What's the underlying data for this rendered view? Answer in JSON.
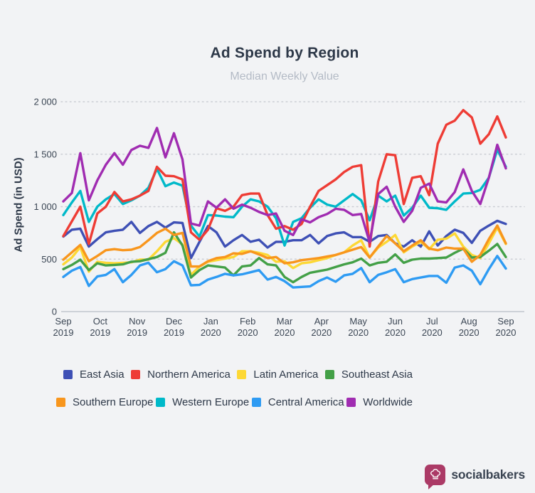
{
  "header": {
    "title": "Ad Spend by Region",
    "subtitle": "Median Weekly Value"
  },
  "branding": {
    "logo_text": "socialbakers",
    "logo_color": "#ab3a66",
    "logo_icon": "chef-hat-speech-bubble"
  },
  "chart_data": {
    "type": "line",
    "title": "Ad Spend by Region",
    "subtitle": "Median Weekly Value",
    "xlabel": "",
    "ylabel": "Ad Spend (in USD)",
    "ylim": [
      0,
      2000
    ],
    "grid": "horizontal-dotted",
    "legend_position": "bottom",
    "x_unit": "week",
    "points_per_series": 53,
    "y_ticks": [
      {
        "value": 0,
        "label": "0"
      },
      {
        "value": 500,
        "label": "500"
      },
      {
        "value": 1000,
        "label": "1 000"
      },
      {
        "value": 1500,
        "label": "1 500"
      },
      {
        "value": 2000,
        "label": "2 000"
      }
    ],
    "x_tick_labels": [
      {
        "month": "Sep",
        "year": "2019"
      },
      {
        "month": "Oct",
        "year": "2019"
      },
      {
        "month": "Nov",
        "year": "2019"
      },
      {
        "month": "Dec",
        "year": "2019"
      },
      {
        "month": "Jan",
        "year": "2020"
      },
      {
        "month": "Feb",
        "year": "2020"
      },
      {
        "month": "Mar",
        "year": "2020"
      },
      {
        "month": "Apr",
        "year": "2020"
      },
      {
        "month": "May",
        "year": "2020"
      },
      {
        "month": "Jun",
        "year": "2020"
      },
      {
        "month": "Jul",
        "year": "2020"
      },
      {
        "month": "Aug",
        "year": "2020"
      },
      {
        "month": "Sep",
        "year": "2020"
      }
    ],
    "series": [
      {
        "name": "East Asia",
        "color": "#3e50b5",
        "values": [
          715,
          780,
          790,
          620,
          690,
          755,
          770,
          780,
          855,
          750,
          815,
          855,
          800,
          850,
          845,
          510,
          665,
          815,
          755,
          620,
          680,
          730,
          665,
          685,
          610,
          665,
          665,
          680,
          680,
          730,
          650,
          720,
          745,
          755,
          710,
          710,
          665,
          720,
          730,
          650,
          620,
          680,
          620,
          765,
          630,
          720,
          780,
          750,
          655,
          770,
          820,
          865,
          835
        ]
      },
      {
        "name": "Northern America",
        "color": "#ee3c35",
        "values": [
          720,
          860,
          1000,
          645,
          935,
          1000,
          1140,
          1050,
          1070,
          1105,
          1150,
          1380,
          1295,
          1290,
          1260,
          755,
          685,
          780,
          985,
          960,
          1000,
          1110,
          1125,
          1125,
          920,
          790,
          815,
          780,
          835,
          1000,
          1150,
          1205,
          1260,
          1330,
          1380,
          1395,
          620,
          1240,
          1500,
          1490,
          1025,
          1275,
          1290,
          1110,
          1600,
          1780,
          1820,
          1920,
          1850,
          1600,
          1690,
          1860,
          1660
        ]
      },
      {
        "name": "Latin America",
        "color": "#fdd835",
        "values": [
          450,
          515,
          615,
          380,
          475,
          465,
          460,
          465,
          470,
          495,
          495,
          575,
          665,
          700,
          640,
          350,
          430,
          475,
          490,
          505,
          520,
          575,
          575,
          560,
          540,
          475,
          480,
          415,
          460,
          470,
          490,
          510,
          540,
          565,
          630,
          680,
          515,
          610,
          665,
          730,
          565,
          620,
          665,
          595,
          685,
          695,
          745,
          620,
          540,
          510,
          650,
          800,
          645
        ]
      },
      {
        "name": "Southeast Asia",
        "color": "#43a047",
        "values": [
          405,
          445,
          495,
          395,
          460,
          440,
          445,
          450,
          475,
          480,
          500,
          520,
          560,
          755,
          630,
          325,
          395,
          440,
          430,
          420,
          345,
          430,
          440,
          510,
          450,
          440,
          330,
          280,
          330,
          370,
          385,
          400,
          425,
          450,
          470,
          505,
          440,
          465,
          475,
          545,
          465,
          495,
          505,
          505,
          510,
          515,
          560,
          600,
          515,
          520,
          580,
          645,
          520
        ]
      },
      {
        "name": "Southern Europe",
        "color": "#f8961d",
        "values": [
          495,
          565,
          635,
          480,
          530,
          585,
          595,
          585,
          590,
          615,
          680,
          750,
          790,
          730,
          750,
          430,
          430,
          480,
          510,
          520,
          555,
          550,
          575,
          545,
          510,
          520,
          460,
          470,
          490,
          500,
          510,
          525,
          540,
          565,
          590,
          615,
          515,
          620,
          720,
          650,
          575,
          630,
          680,
          600,
          585,
          610,
          600,
          600,
          475,
          540,
          690,
          820,
          650
        ]
      },
      {
        "name": "Western Europe",
        "color": "#00b9c9",
        "values": [
          920,
          1040,
          1150,
          855,
          1000,
          1070,
          1120,
          1025,
          1060,
          1105,
          1180,
          1360,
          1195,
          1230,
          1200,
          820,
          715,
          920,
          915,
          905,
          900,
          1000,
          1070,
          1050,
          1000,
          890,
          630,
          855,
          890,
          990,
          1070,
          1020,
          1000,
          1060,
          1120,
          1060,
          870,
          1105,
          1050,
          1105,
          915,
          990,
          1105,
          990,
          985,
          970,
          1050,
          1125,
          1130,
          1160,
          1275,
          1545,
          1380
        ]
      },
      {
        "name": "Central America",
        "color": "#2e9bf3",
        "values": [
          330,
          390,
          425,
          245,
          335,
          350,
          405,
          280,
          350,
          440,
          465,
          375,
          405,
          480,
          440,
          250,
          255,
          305,
          330,
          360,
          345,
          355,
          375,
          395,
          305,
          330,
          290,
          230,
          235,
          240,
          290,
          325,
          285,
          345,
          360,
          415,
          280,
          350,
          375,
          405,
          280,
          310,
          325,
          340,
          340,
          275,
          420,
          440,
          390,
          260,
          405,
          530,
          410
        ]
      },
      {
        "name": "Worldwide",
        "color": "#a02cb1",
        "values": [
          1050,
          1130,
          1510,
          1060,
          1250,
          1400,
          1510,
          1400,
          1540,
          1580,
          1560,
          1750,
          1470,
          1700,
          1450,
          840,
          820,
          1050,
          990,
          1070,
          980,
          1020,
          990,
          950,
          920,
          935,
          770,
          730,
          880,
          850,
          900,
          930,
          980,
          970,
          920,
          930,
          660,
          1120,
          1190,
          1000,
          855,
          960,
          1180,
          1220,
          1050,
          1040,
          1140,
          1355,
          1150,
          1025,
          1275,
          1590,
          1365
        ]
      }
    ]
  }
}
